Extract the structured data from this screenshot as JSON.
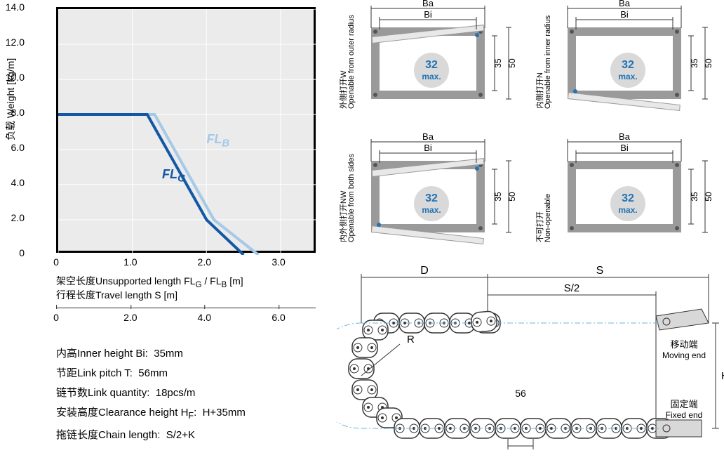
{
  "chart": {
    "type": "line",
    "y_label": "负载 Weight [kg/m]",
    "x_label1": "架空长度Unsupported length FLG / FLB [m]",
    "x_label2": "行程长度Travel length S [m]",
    "y_ticks": [
      "0",
      "2.0",
      "4.0",
      "6.0",
      "8.0",
      "10.0",
      "12.0",
      "14.0"
    ],
    "y_positions_pct": [
      100,
      85.7,
      71.4,
      57.1,
      42.9,
      28.6,
      14.3,
      0
    ],
    "x_ticks": [
      "0",
      "1.0",
      "2.0",
      "3.0"
    ],
    "x_positions_pct": [
      0,
      28.6,
      57.1,
      85.7
    ],
    "sec_ticks": [
      "0",
      "2.0",
      "4.0",
      "6.0"
    ],
    "sec_positions_pct": [
      0,
      28.6,
      57.1,
      85.7
    ],
    "fl_g": {
      "label": "FLG",
      "color": "#1258a5",
      "stroke_width": 4,
      "points": [
        [
          0,
          8
        ],
        [
          1.2,
          8
        ],
        [
          2.0,
          2
        ],
        [
          2.5,
          0
        ]
      ]
    },
    "fl_b": {
      "label": "FLB",
      "color": "#a5c9e6",
      "stroke_width": 4,
      "points": [
        [
          0.5,
          8
        ],
        [
          1.3,
          8
        ],
        [
          2.1,
          2
        ],
        [
          2.7,
          0
        ]
      ]
    },
    "xlim": [
      0,
      3.5
    ],
    "ylim": [
      0,
      14
    ],
    "background": "#ebebeb",
    "border": "#000000",
    "grid": "#ffffff"
  },
  "specs": [
    {
      "label": "内高Inner height Bi:",
      "value": "35mm"
    },
    {
      "label": "节距Link pitch T:",
      "value": "56mm"
    },
    {
      "label": "链节数Link quantity:",
      "value": "18pcs/m"
    },
    {
      "label": "安装高度Clearance height HF:",
      "value": "H+35mm"
    },
    {
      "label": "拖链长度Chain length:",
      "value": "S/2+K"
    }
  ],
  "cross_sections": [
    {
      "id": "W",
      "cn": "外侧打开W",
      "en": "Openable from outer radius",
      "inner": "32",
      "txt": "max.",
      "h_inner": "35",
      "h_outer": "50",
      "w_inner": "Bi",
      "w_outer": "Ba",
      "open_top": true,
      "open_bot": false
    },
    {
      "id": "N",
      "cn": "内侧打开N",
      "en": "Openable from inner radius",
      "inner": "32",
      "txt": "max.",
      "h_inner": "35",
      "h_outer": "50",
      "w_inner": "Bi",
      "w_outer": "Ba",
      "open_top": false,
      "open_bot": true
    },
    {
      "id": "NW",
      "cn": "内外侧打开NW",
      "en": "Openable from both sides",
      "inner": "32",
      "txt": "max.",
      "h_inner": "35",
      "h_outer": "50",
      "w_inner": "Bi",
      "w_outer": "Ba",
      "open_top": true,
      "open_bot": true
    },
    {
      "id": "X",
      "cn": "不可打开",
      "en": "Non-openable",
      "inner": "32",
      "txt": "max.",
      "h_inner": "35",
      "h_outer": "50",
      "w_inner": "Bi",
      "w_outer": "Ba",
      "open_top": false,
      "open_bot": false
    }
  ],
  "bottom": {
    "D": "D",
    "S": "S",
    "S2": "S/2",
    "R": "R",
    "H": "H",
    "pitch": "56",
    "moving_cn": "移动端",
    "moving_en": "Moving end",
    "fixed_cn": "固定端",
    "fixed_en": "Fixed end"
  }
}
